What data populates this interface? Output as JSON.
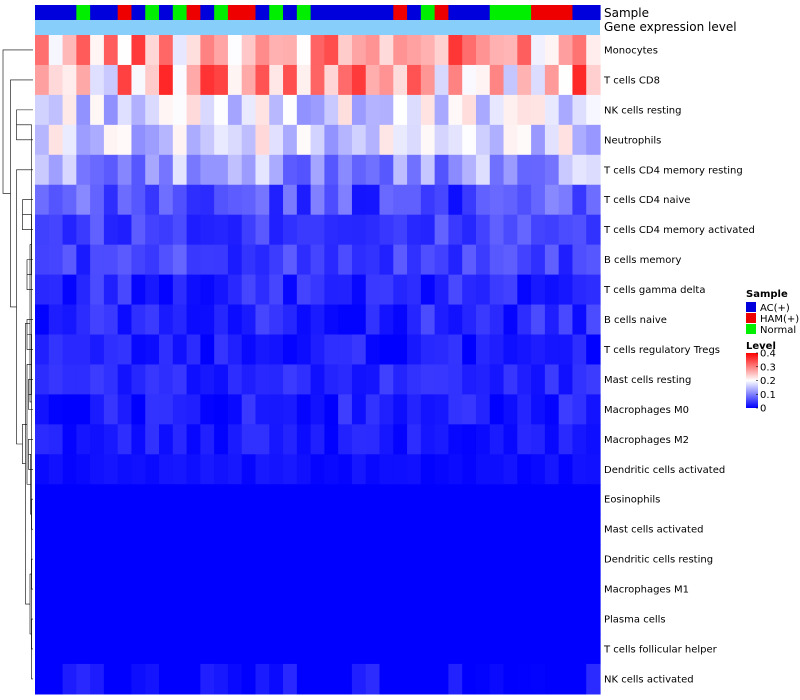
{
  "chart_data": {
    "type": "heatmap",
    "title": "",
    "annotation_labels": {
      "sample": "Sample",
      "expression": "Gene expression level"
    },
    "rows": [
      "Monocytes",
      "T cells CD8",
      "NK cells resting",
      "Neutrophils",
      "T cells CD4 memory resting",
      "T cells CD4 naive",
      "T cells CD4 memory activated",
      "B cells memory",
      "T cells gamma delta",
      "B cells naive",
      "T cells regulatory  Tregs",
      "Mast cells resting",
      "Macrophages M0",
      "Macrophages M2",
      "Dendritic cells activated",
      "Eosinophils",
      "Mast cells activated",
      "Dendritic cells resting",
      "Macrophages M1",
      "Plasma cells",
      "T cells follicular helper",
      "NK cells activated"
    ],
    "sample_groups": [
      "AC",
      "AC",
      "AC",
      "Normal",
      "AC",
      "AC",
      "HAM",
      "AC",
      "Normal",
      "AC",
      "Normal",
      "HAM",
      "AC",
      "Normal",
      "HAM",
      "HAM",
      "AC",
      "Normal",
      "AC",
      "Normal",
      "AC",
      "AC",
      "AC",
      "AC",
      "AC",
      "AC",
      "HAM",
      "AC",
      "Normal",
      "HAM",
      "AC",
      "AC",
      "AC",
      "Normal",
      "Normal",
      "Normal",
      "HAM",
      "HAM",
      "HAM",
      "AC",
      "AC"
    ],
    "sample_legend": {
      "title": "Sample",
      "items": [
        {
          "key": "AC",
          "label": "AC(+)",
          "color": "#0000dd"
        },
        {
          "key": "HAM",
          "label": "HAM(+)",
          "color": "#ee0000"
        },
        {
          "key": "Normal",
          "label": "Normal",
          "color": "#00ee00"
        }
      ]
    },
    "color_scale": {
      "title": "Level",
      "min": 0,
      "max": 0.4,
      "ticks": [
        "0.4",
        "0.3",
        "0.2",
        "0.1",
        "0"
      ],
      "tick_values": [
        0.4,
        0.3,
        0.2,
        0.1,
        0
      ],
      "colors": [
        "#0000ff",
        "#ffffff",
        "#ff0000"
      ]
    },
    "expression_bar_color": "#87cefa",
    "row_base": [
      0.27,
      0.26,
      0.17,
      0.17,
      0.12,
      0.06,
      0.05,
      0.05,
      0.03,
      0.03,
      0.02,
      0.03,
      0.02,
      0.02,
      0.01,
      0,
      0,
      0,
      0,
      0,
      0,
      0.005
    ],
    "row_variation": [
      0.09,
      0.11,
      0.06,
      0.06,
      0.06,
      0.05,
      0.03,
      0.03,
      0.03,
      0.03,
      0.025,
      0.02,
      0.03,
      0.02,
      0.01,
      0,
      0,
      0,
      0,
      0,
      0,
      0.03
    ],
    "dendrogram_merges": [
      [
        2,
        3,
        0.55
      ],
      [
        5,
        6,
        0.35
      ],
      [
        7,
        8,
        0.2
      ],
      [
        9,
        10,
        0.2
      ],
      [
        11,
        12,
        0.15
      ],
      [
        13,
        14,
        0.15
      ],
      [
        15,
        16,
        0.05
      ],
      [
        17,
        18,
        0.05
      ],
      [
        19,
        20,
        0.05
      ],
      [
        21,
        22,
        0.05
      ],
      [
        23,
        24,
        0.05
      ],
      [
        25,
        26,
        0.05
      ],
      [
        27,
        28,
        0.08
      ],
      [
        29,
        30,
        0.1
      ],
      [
        31,
        32,
        0.1
      ],
      [
        33,
        34,
        0.2
      ],
      [
        35,
        36,
        0.25
      ],
      [
        37,
        38,
        0.35
      ],
      [
        4,
        39,
        0.55
      ],
      [
        1,
        40,
        0.75
      ],
      [
        0,
        41,
        1.0
      ]
    ]
  }
}
